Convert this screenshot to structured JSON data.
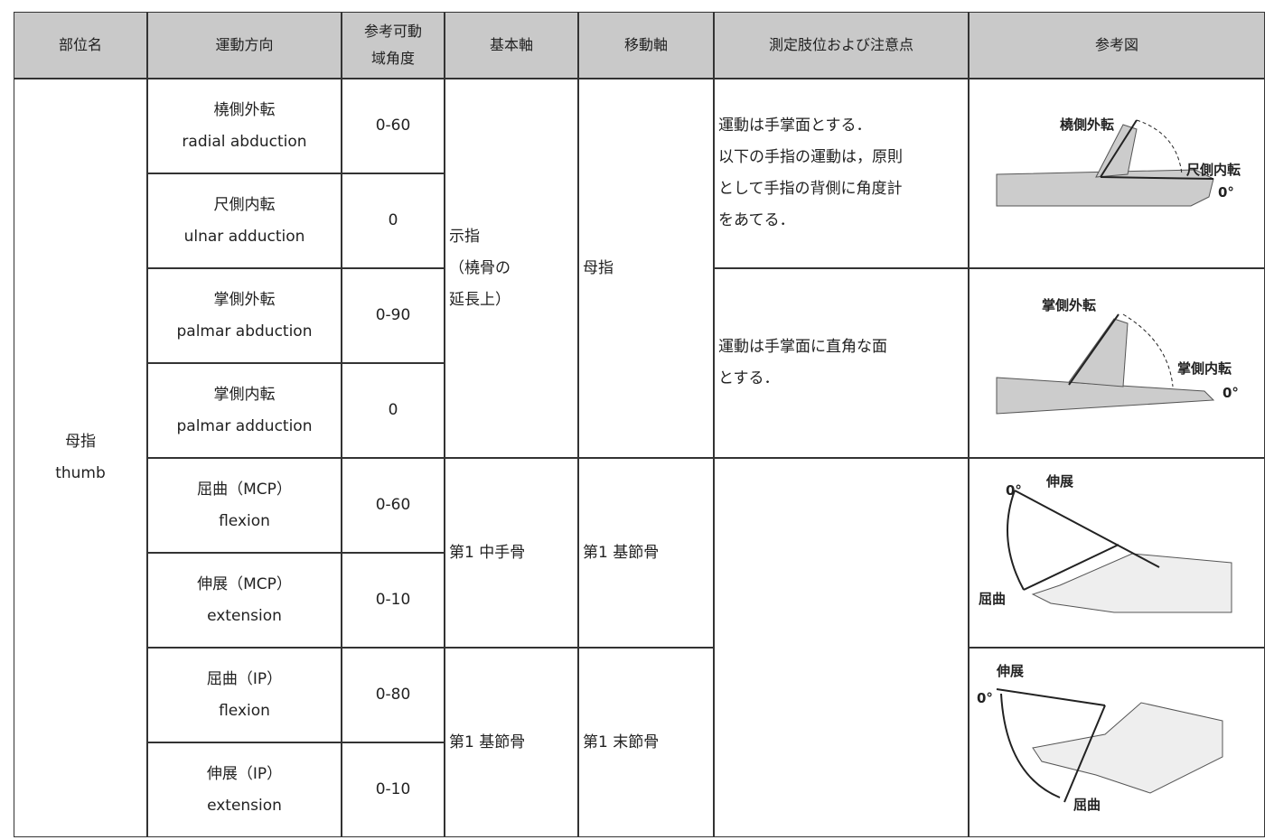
{
  "header": {
    "columns": [
      "部位名",
      "運動方向",
      "参考可動域角度",
      "基本軸",
      "移動軸",
      "測定肢位および注意点",
      "参考図"
    ]
  },
  "part": {
    "ja": "母指",
    "en": "thumb"
  },
  "movements": [
    {
      "ja": "橈側外転",
      "en": "radial abduction",
      "range": "0-60"
    },
    {
      "ja": "尺側内転",
      "en": "ulnar adduction",
      "range": "0"
    },
    {
      "ja": "掌側外転",
      "en": "palmar abduction",
      "range": "0-90"
    },
    {
      "ja": "掌側内転",
      "en": "palmar adduction",
      "range": "0"
    },
    {
      "ja": "屈曲（MCP）",
      "en": "flexion",
      "range": "0-60"
    },
    {
      "ja": "伸展（MCP）",
      "en": "extension",
      "range": "0-10"
    },
    {
      "ja": "屈曲（IP）",
      "en": "flexion",
      "range": "0-80"
    },
    {
      "ja": "伸展（IP）",
      "en": "extension",
      "range": "0-10"
    }
  ],
  "axes": [
    {
      "base": [
        "示指",
        "（橈骨の",
        "延長上）"
      ],
      "moving": [
        "母指"
      ]
    },
    {
      "base": [
        "第1 中手骨"
      ],
      "moving": [
        "第1 基節骨"
      ]
    },
    {
      "base": [
        "第1 基節骨"
      ],
      "moving": [
        "第1 末節骨"
      ]
    }
  ],
  "notes": [
    [
      "運動は手掌面とする．",
      "以下の手指の運動は，原則",
      "として手指の背側に角度計",
      "をあてる．"
    ],
    [
      "運動は手掌面に直角な面",
      "とする．"
    ]
  ],
  "figures": [
    {
      "labels": [
        "橈側外転",
        "尺側内転",
        "0°"
      ]
    },
    {
      "labels": [
        "掌側外転",
        "掌側内転",
        "0°"
      ]
    },
    {
      "labels": [
        "0°",
        "伸展",
        "屈曲"
      ]
    },
    {
      "labels": [
        "伸展",
        "0°",
        "屈曲"
      ]
    }
  ]
}
